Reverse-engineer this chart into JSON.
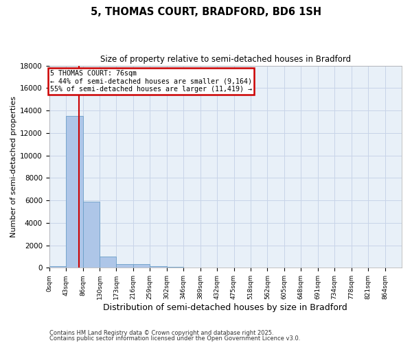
{
  "title": "5, THOMAS COURT, BRADFORD, BD6 1SH",
  "subtitle": "Size of property relative to semi-detached houses in Bradford",
  "xlabel": "Distribution of semi-detached houses by size in Bradford",
  "ylabel": "Number of semi-detached properties",
  "property_size": 76,
  "annotation_line1": "5 THOMAS COURT: 76sqm",
  "annotation_line2": "← 44% of semi-detached houses are smaller (9,164)",
  "annotation_line3": "55% of semi-detached houses are larger (11,419) →",
  "bin_edges": [
    0,
    43,
    86,
    129,
    172,
    215,
    258,
    301,
    344,
    387,
    430,
    473,
    516,
    559,
    602,
    645,
    688,
    731,
    774,
    817,
    860,
    903
  ],
  "bin_labels": [
    "0sqm",
    "43sqm",
    "86sqm",
    "130sqm",
    "173sqm",
    "216sqm",
    "259sqm",
    "302sqm",
    "346sqm",
    "389sqm",
    "432sqm",
    "475sqm",
    "518sqm",
    "562sqm",
    "605sqm",
    "648sqm",
    "691sqm",
    "734sqm",
    "778sqm",
    "821sqm",
    "864sqm"
  ],
  "bar_heights": [
    150,
    13500,
    5900,
    1000,
    350,
    300,
    150,
    100,
    0,
    0,
    0,
    0,
    0,
    0,
    0,
    0,
    0,
    0,
    0,
    0,
    0
  ],
  "bar_color": "#aec6e8",
  "bar_edge_color": "#6a9ec7",
  "red_line_color": "#cc0000",
  "annotation_box_color": "#cc0000",
  "ylim": [
    0,
    18000
  ],
  "yticks": [
    0,
    2000,
    4000,
    6000,
    8000,
    10000,
    12000,
    14000,
    16000,
    18000
  ],
  "grid_color": "#c8d4e8",
  "bg_color": "#e8f0f8",
  "footer1": "Contains HM Land Registry data © Crown copyright and database right 2025.",
  "footer2": "Contains public sector information licensed under the Open Government Licence v3.0."
}
